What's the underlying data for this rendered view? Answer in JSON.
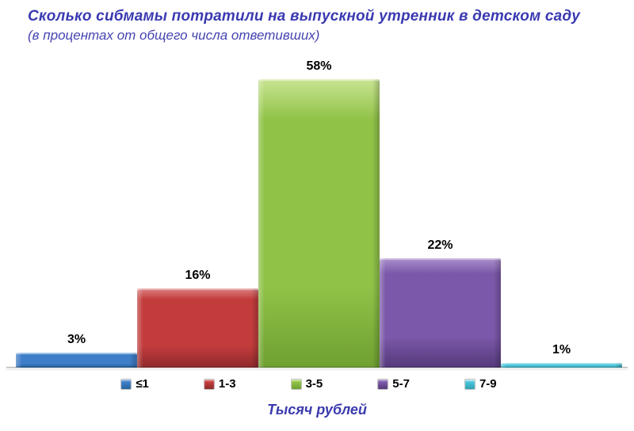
{
  "title": "Сколько сибмамы потратили на выпускной утренник в детском саду",
  "subtitle": "(в процентах от общего числа ответивших)",
  "chart_data": {
    "type": "bar",
    "title": "Сколько сибмамы потратили на выпускной утренник в детском саду",
    "subtitle": "(в процентах от общего числа ответивших)",
    "categories": [
      "≤1",
      "1-3",
      "3-5",
      "5-7",
      "7-9"
    ],
    "values": [
      3,
      16,
      58,
      22,
      1
    ],
    "value_labels": [
      "3%",
      "16%",
      "58%",
      "22%",
      "1%"
    ],
    "xlabel": "Тысяч рублей",
    "ylabel": "",
    "ylim": [
      0,
      60
    ],
    "grid": false,
    "axis_ticks_visible": false,
    "legend_position": "bottom",
    "bar_colors": [
      {
        "base": "#3E7DC7",
        "light": "#85B6E8",
        "dark": "#27639E"
      },
      {
        "base": "#C33C3C",
        "light": "#DC8282",
        "dark": "#8F2A2C"
      },
      {
        "base": "#90C248",
        "light": "#C8E491",
        "dark": "#6FA031"
      },
      {
        "base": "#7B58A9",
        "light": "#A98FCB",
        "dark": "#55397B"
      },
      {
        "base": "#48C4D8",
        "light": "#B4EAF2",
        "dark": "#2F9FB4"
      }
    ]
  },
  "colors": {
    "background": "#FFFFFF",
    "title_text": "#3A3AB2",
    "axis_line": "#ADADAD",
    "value_label_text": "#000000"
  }
}
